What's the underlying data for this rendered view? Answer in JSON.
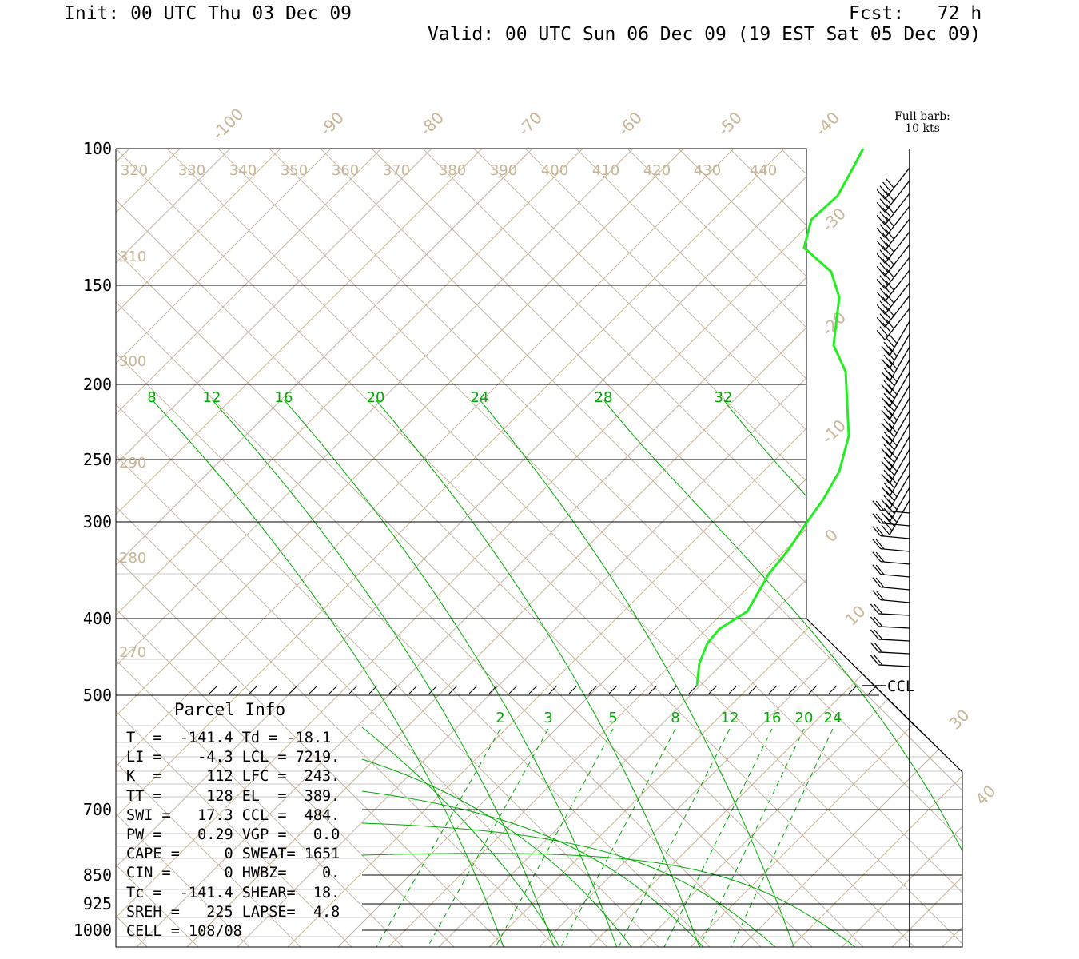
{
  "header": {
    "init": "Init: 00 UTC Thu 03 Dec 09",
    "fcst": "Fcst:   72 h",
    "valid": "Valid: 00 UTC Sun 06 Dec 09 (19 EST Sat 05 Dec 09)"
  },
  "barb_key": {
    "line1": "Full barb:",
    "line2": "10 kts"
  },
  "colors": {
    "grid": "#c8b496",
    "mixing": "#00aa00",
    "profile": "#22ee22",
    "axis": "#000000"
  },
  "chart_data": {
    "type": "skew-t",
    "pressure_levels": [
      "100",
      "150",
      "200",
      "250",
      "300",
      "400",
      "500",
      "700",
      "850",
      "925",
      "1000"
    ],
    "isotherm_labels": [
      "-100",
      "-90",
      "-80",
      "-70",
      "-60",
      "-50",
      "-40",
      "-30",
      "-20",
      "-10",
      "0",
      "10",
      "30",
      "40"
    ],
    "theta_labels_top": [
      "320",
      "330",
      "340",
      "350",
      "360",
      "370",
      "380",
      "390",
      "400",
      "410",
      "420",
      "430",
      "440"
    ],
    "theta_labels_left": [
      "310",
      "300",
      "290",
      "280",
      "270"
    ],
    "moist_labels": [
      "8",
      "12",
      "16",
      "20",
      "24",
      "28",
      "32"
    ],
    "mixing_labels": [
      "2",
      "3",
      "5",
      "8",
      "12",
      "16",
      "20",
      "24"
    ],
    "ccl_label": "CCL"
  },
  "parcel": {
    "title": "Parcel Info",
    "rows": [
      "T  =  -141.4 Td = -18.1",
      "LI =    -4.3 LCL = 7219.",
      "K  =     112 LFC =  243.",
      "TT =     128 EL  =  389.",
      "SWI =   17.3 CCL =  484.",
      "PW =    0.29 VGP =   0.0",
      "CAPE =     0 SWEAT= 1651",
      "CIN =      0 HWBZ=    0.",
      "Tc =  -141.4 SHEAR=  18.",
      "SREH =   225 LAPSE=  4.8",
      "CELL = 108/08"
    ]
  }
}
